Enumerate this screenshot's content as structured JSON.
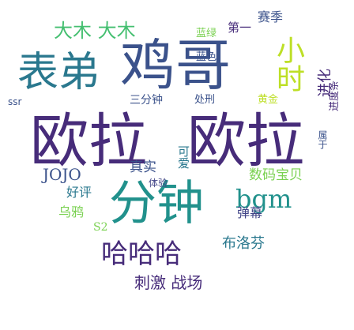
{
  "colors": {
    "dark_purple": "#472c7a",
    "purple": "#3b528b",
    "slate": "#414487",
    "teal": "#2a788e",
    "blue_teal": "#21918c",
    "green_teal": "#22a884",
    "green": "#44bf70",
    "lime": "#7ad151",
    "yellow_green": "#bddf26",
    "yellow": "#fde725"
  },
  "words": {
    "w_oula_1": "欧拉",
    "w_oula_2": "欧拉",
    "w_jige": "鸡哥",
    "w_biaodi": "表弟",
    "w_fenzhong": "分钟",
    "w_hahaha": "哈哈哈",
    "w_bgm": "bgm",
    "w_xiaoshi": "小时",
    "w_damu": "大木 大木",
    "w_cijizhanchang": "刺激 战场",
    "w_jojo": "JOJO",
    "w_shumabaobei": "数码宝贝",
    "w_buluofen": "布洛芬",
    "w_danmu": "弹幕",
    "w_zhenshi": "真实",
    "w_keai": "可爱",
    "w_haoping": "好评",
    "w_wuya": "乌鸦",
    "w_s2": "S2",
    "w_tiyan": "体验",
    "w_sanfenzhong": "三分钟",
    "w_chuxing": "处刑",
    "w_huangjin": "黄金",
    "w_jinhua": "进化",
    "w_jindutiao": "进度条",
    "w_shuyu": "属于",
    "w_lanse": "蓝色",
    "w_lanlv": "蓝绿",
    "w_diyi": "第一",
    "w_saiji": "赛季",
    "w_ssr": "ssr"
  }
}
